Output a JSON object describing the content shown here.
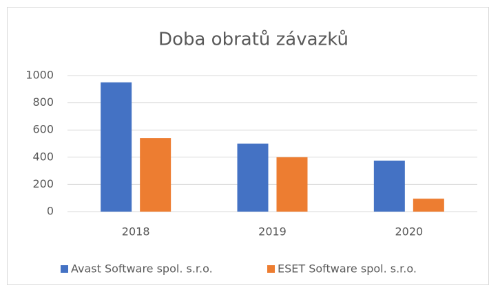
{
  "chart_data": {
    "type": "bar",
    "title": "Doba obratů závazků",
    "categories": [
      "2018",
      "2019",
      "2020"
    ],
    "series": [
      {
        "name": "Avast Software spol. s.r.o.",
        "color": "#4472c4",
        "values": [
          950,
          500,
          375
        ]
      },
      {
        "name": "ESET Software spol. s.r.o.",
        "color": "#ed7d31",
        "values": [
          540,
          400,
          95
        ]
      }
    ],
    "ylim": [
      0,
      1000
    ],
    "yticks": [
      0,
      200,
      400,
      600,
      800,
      1000
    ],
    "grid": true,
    "legend": "bottom"
  }
}
